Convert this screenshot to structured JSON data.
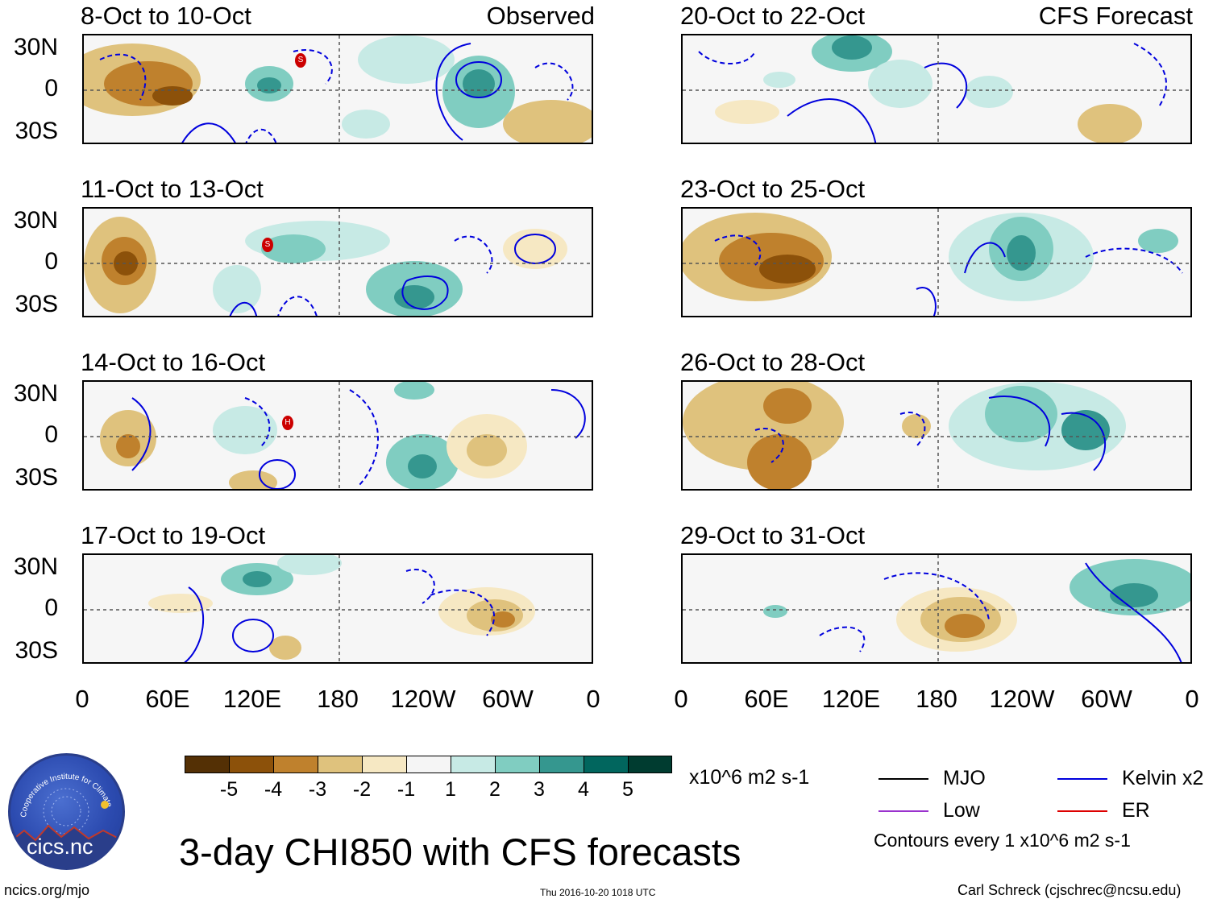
{
  "title": "3-day CHI850 with CFS forecasts",
  "observed_label": "Observed",
  "forecast_label": "CFS Forecast",
  "lat_labels": [
    "30N",
    "0",
    "30S"
  ],
  "lon_labels": [
    "0",
    "60E",
    "120E",
    "180",
    "120W",
    "60W",
    "0"
  ],
  "left_panels": [
    {
      "period": "8-Oct to 10-Oct",
      "storm_markers": [
        "S"
      ]
    },
    {
      "period": "11-Oct to 13-Oct",
      "storm_markers": [
        "S"
      ]
    },
    {
      "period": "14-Oct to 16-Oct",
      "storm_markers": [
        "H"
      ]
    },
    {
      "period": "17-Oct to 19-Oct",
      "storm_markers": []
    }
  ],
  "right_panels": [
    {
      "period": "20-Oct to 22-Oct"
    },
    {
      "period": "23-Oct to 25-Oct"
    },
    {
      "period": "26-Oct to 28-Oct"
    },
    {
      "period": "29-Oct to 31-Oct"
    }
  ],
  "colorbar": {
    "labels": [
      "-5",
      "-4",
      "-3",
      "-2",
      "-1",
      "1",
      "2",
      "3",
      "4",
      "5"
    ],
    "colors": [
      "#543005",
      "#8c510a",
      "#bf812d",
      "#dfc27d",
      "#f6e8c3",
      "#f5f5f5",
      "#c7eae5",
      "#80cdc1",
      "#35978f",
      "#01665e",
      "#003c30"
    ],
    "units": "x10^6 m2 s-1"
  },
  "legend": {
    "items": [
      {
        "label": "MJO",
        "color": "#000000"
      },
      {
        "label": "Kelvin x2",
        "color": "#0000dd"
      },
      {
        "label": "Low",
        "color": "#9a32cd"
      },
      {
        "label": "ER",
        "color": "#dd0000"
      }
    ],
    "contour_note": "Contours every 1 x10^6 m2 s-1"
  },
  "logo": {
    "arc_text": "Cooperative Institute for Climate and Satellites",
    "name": "cics.nc"
  },
  "footer": {
    "left": "ncics.org/mjo",
    "center": "Thu 2016-10-20 1018 UTC",
    "right": "Carl Schreck (cjschrec@ncsu.edu)"
  }
}
